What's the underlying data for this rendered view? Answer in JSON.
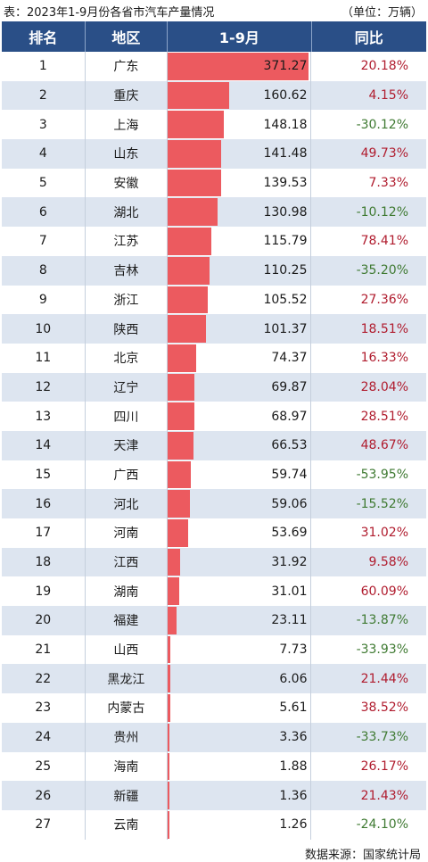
{
  "title": "表：2023年1-9月份各省市汽车产量情况",
  "unit": "（单位：万辆）",
  "headers": {
    "rank": "排名",
    "region": "地区",
    "value": "1-9月",
    "yoy": "同比"
  },
  "footer": "数据来源：国家统计局",
  "colors": {
    "header_bg": "#2a4f87",
    "bar": "#ec5a5f",
    "positive": "#b01c2e",
    "negative": "#3f7a32",
    "row_alt": "#dde5f0"
  },
  "chart_data": {
    "type": "bar",
    "categories": [
      "广东",
      "重庆",
      "上海",
      "山东",
      "安徽",
      "湖北",
      "江苏",
      "吉林",
      "浙江",
      "陕西",
      "北京",
      "辽宁",
      "四川",
      "天津",
      "广西",
      "河北",
      "河南",
      "江西",
      "湖南",
      "福建",
      "山西",
      "黑龙江",
      "内蒙古",
      "贵州",
      "海南",
      "新疆",
      "云南"
    ],
    "values": [
      371.27,
      160.62,
      148.18,
      141.48,
      139.53,
      130.98,
      115.79,
      110.25,
      105.52,
      101.37,
      74.37,
      69.87,
      68.97,
      66.53,
      59.74,
      59.06,
      53.69,
      31.92,
      31.01,
      23.11,
      7.73,
      6.06,
      5.61,
      3.36,
      1.88,
      1.36,
      1.26
    ],
    "yoy": [
      "20.18%",
      "4.15%",
      "-30.12%",
      "49.73%",
      "7.33%",
      "-10.12%",
      "78.41%",
      "-35.20%",
      "27.36%",
      "18.51%",
      "16.33%",
      "28.04%",
      "28.51%",
      "48.67%",
      "-53.95%",
      "-15.52%",
      "31.02%",
      "9.58%",
      "60.09%",
      "-13.87%",
      "-33.93%",
      "21.44%",
      "38.52%",
      "-33.73%",
      "26.17%",
      "21.43%",
      "-24.10%"
    ],
    "ranks": [
      "1",
      "2",
      "3",
      "4",
      "5",
      "6",
      "7",
      "8",
      "9",
      "10",
      "11",
      "12",
      "13",
      "14",
      "15",
      "16",
      "17",
      "18",
      "19",
      "20",
      "21",
      "22",
      "23",
      "24",
      "25",
      "26",
      "27"
    ]
  }
}
